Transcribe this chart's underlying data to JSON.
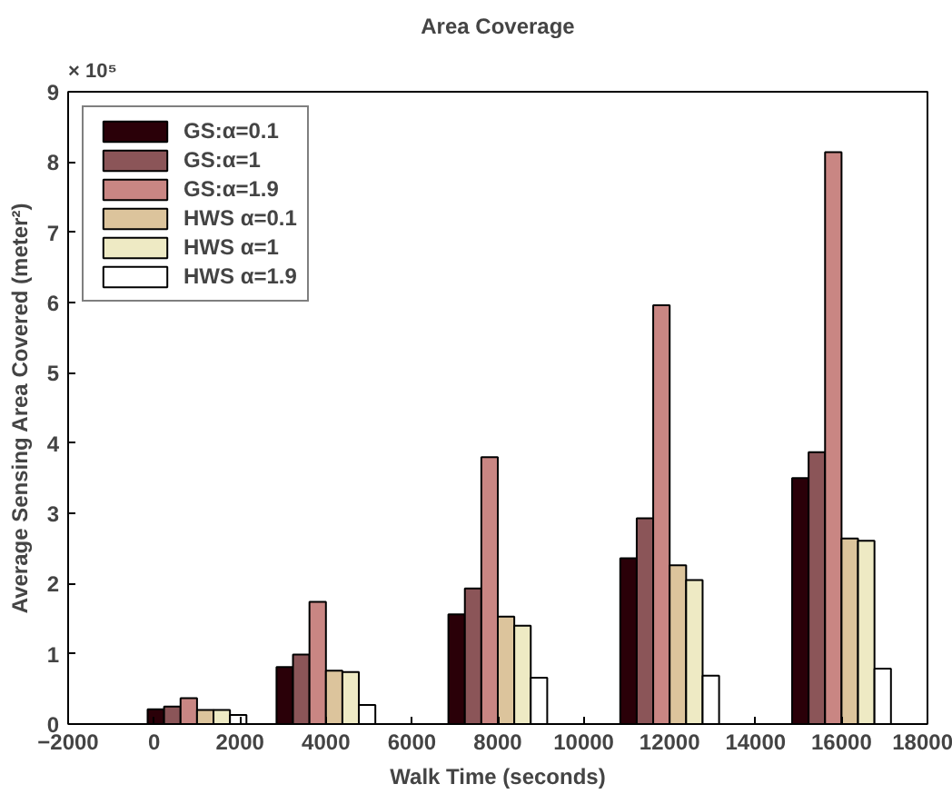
{
  "chart_data": {
    "type": "bar",
    "title": "Area Coverage",
    "xlabel": "Walk Time (seconds)",
    "ylabel": "Average Sensing Area Covered (meter²)",
    "annotations": [
      "× 10⁵"
    ],
    "x": [
      1000,
      4000,
      8000,
      12000,
      16000
    ],
    "series": [
      {
        "name": "GS:α=0.1",
        "color": "#2a0008",
        "values": [
          0.21,
          0.81,
          1.56,
          2.36,
          3.5
        ]
      },
      {
        "name": "GS:α=1",
        "color": "#8b5558",
        "values": [
          0.25,
          0.99,
          1.93,
          2.93,
          3.87
        ]
      },
      {
        "name": "GS:α=1.9",
        "color": "#c98683",
        "values": [
          0.37,
          1.74,
          3.8,
          5.96,
          8.14
        ]
      },
      {
        "name": "HWS α=0.1",
        "color": "#dcc49c",
        "values": [
          0.2,
          0.76,
          1.53,
          2.26,
          2.64
        ]
      },
      {
        "name": "HWS α=1",
        "color": "#eeeac4",
        "values": [
          0.2,
          0.74,
          1.4,
          2.05,
          2.61
        ]
      },
      {
        "name": "HWS α=1.9",
        "color": "#ffffff",
        "values": [
          0.13,
          0.27,
          0.66,
          0.69,
          0.79
        ]
      }
    ],
    "xlim": [
      -2000,
      18000
    ],
    "xticks": [
      -2000,
      0,
      2000,
      4000,
      6000,
      8000,
      10000,
      12000,
      14000,
      16000,
      18000
    ],
    "ylim": [
      0,
      9
    ],
    "yticks": [
      0,
      1,
      2,
      3,
      4,
      5,
      6,
      7,
      8,
      9
    ],
    "grid": false,
    "legend": "top left"
  }
}
